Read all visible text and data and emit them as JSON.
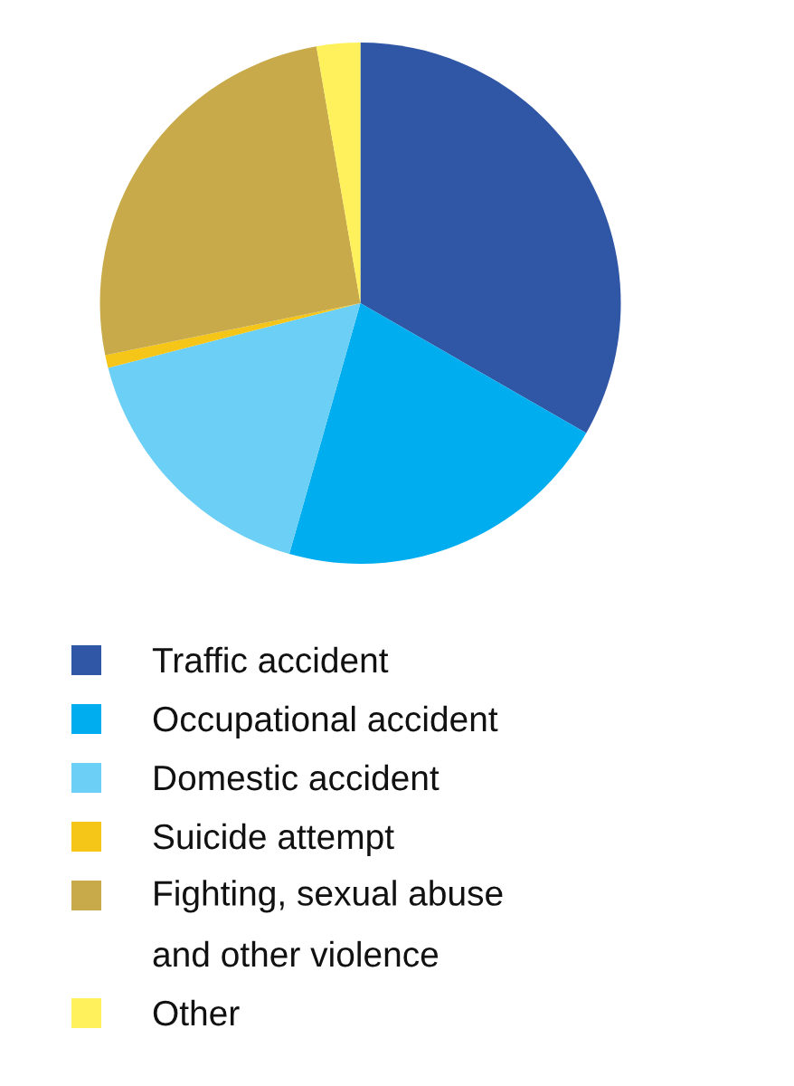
{
  "chart_data": {
    "type": "pie",
    "categories": [
      "Traffic accident",
      "Occupational accident",
      "Domestic accident",
      "Suicide attempt",
      "Fighting, sexual abuse and other violence",
      "Other"
    ],
    "values": [
      33.3,
      21.1,
      16.6,
      0.8,
      25.5,
      2.7
    ],
    "colors": [
      "#3056a6",
      "#00adef",
      "#6ccff6",
      "#f5c617",
      "#c8aa4a",
      "#fff15c"
    ],
    "legend": "bottom"
  }
}
